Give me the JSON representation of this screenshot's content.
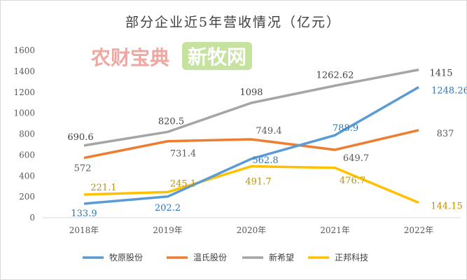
{
  "chart_data": {
    "type": "line",
    "title": "部分企业近5年营收情况（亿元）",
    "categories": [
      "2018年",
      "2019年",
      "2020年",
      "2021年",
      "2022年"
    ],
    "ylim": [
      0,
      1600
    ],
    "yticks": [
      0,
      200,
      400,
      600,
      800,
      1000,
      1200,
      1400,
      1600
    ],
    "grid": false,
    "legend": "bottom",
    "series": [
      {
        "name": "牧原股份",
        "color": "#5B9BD5",
        "values": [
          133.9,
          202.2,
          562.8,
          788.9,
          1248.26
        ],
        "labels": [
          "133.9",
          "202.2",
          "562.8",
          "788.9",
          "1248.26"
        ]
      },
      {
        "name": "温氏股份",
        "color": "#ED7D31",
        "values": [
          572,
          731.4,
          749.4,
          649.7,
          837
        ],
        "labels": [
          "572",
          "731.4",
          "749.4",
          "649.7",
          "837"
        ]
      },
      {
        "name": "新希望",
        "color": "#A5A5A5",
        "values": [
          690.6,
          820.5,
          1098,
          1262.62,
          1415
        ],
        "labels": [
          "690.6",
          "820.5",
          "1098",
          "1262.62",
          "1415"
        ]
      },
      {
        "name": "正邦科技",
        "color": "#FFC000",
        "values": [
          221.1,
          245.1,
          491.7,
          476.7,
          144.15
        ],
        "labels": [
          "221.1",
          "245.1",
          "491.7",
          "476.7",
          "144.15"
        ]
      }
    ]
  },
  "watermarks": [
    "农财宝典",
    "新牧网"
  ]
}
